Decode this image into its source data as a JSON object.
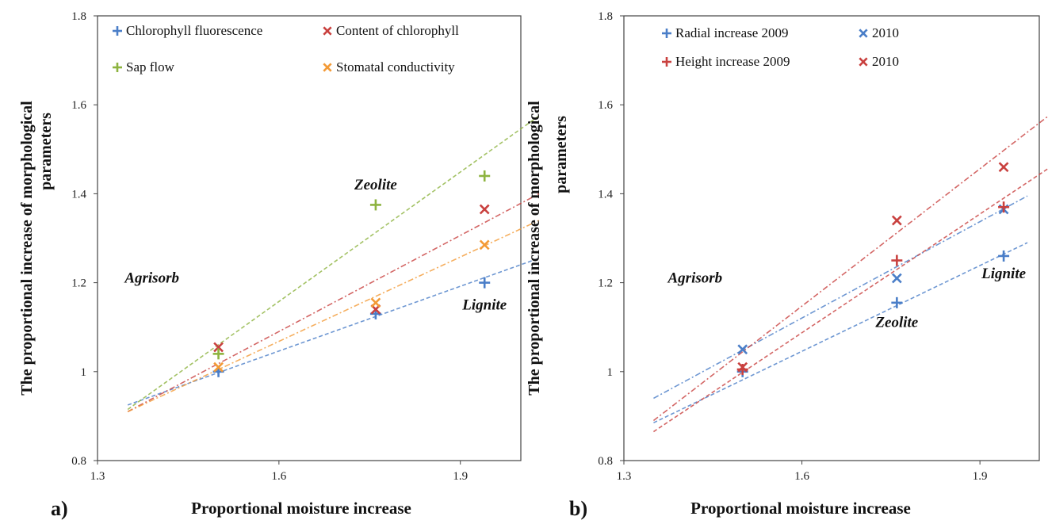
{
  "chart_data": [
    {
      "type": "scatter",
      "panel_label": "a)",
      "xlabel": "Proportional moisture  increase",
      "ylabel": [
        "The proportional increase of  morphological",
        "parameters"
      ],
      "xlim": [
        1.3,
        2.0
      ],
      "ylim": [
        0.8,
        1.8
      ],
      "xticks": [
        "1.3",
        "1.6",
        "1.9"
      ],
      "yticks": [
        "0.8",
        "1",
        "1.2",
        "1.4",
        "1.6",
        "1.8"
      ],
      "legend_position": "top",
      "annotations": [
        {
          "text": "Agrisorb",
          "x": 1.39,
          "y": 1.2
        },
        {
          "text": "Zeolite",
          "x": 1.76,
          "y": 1.41
        },
        {
          "text": "Lignite",
          "x": 1.94,
          "y": 1.14
        }
      ],
      "series": [
        {
          "name": "Chlorophyll fluorescence",
          "marker": "plus",
          "color": "#4a7ec8",
          "x": [
            1.5,
            1.76,
            1.94
          ],
          "y": [
            1.0,
            1.13,
            1.2
          ],
          "trend": {
            "x": [
              1.35,
              2.03
            ],
            "y": [
              0.925,
              1.255
            ]
          }
        },
        {
          "name": "Content of chlorophyll",
          "marker": "cross",
          "color": "#c9413f",
          "x": [
            1.5,
            1.76,
            1.94
          ],
          "y": [
            1.055,
            1.14,
            1.365
          ],
          "trend": {
            "x": [
              1.35,
              2.03
            ],
            "y": [
              0.91,
              1.4
            ]
          }
        },
        {
          "name": "Sap flow",
          "marker": "plus",
          "color": "#8db33f",
          "x": [
            1.5,
            1.76,
            1.94
          ],
          "y": [
            1.04,
            1.375,
            1.44
          ],
          "trend": {
            "x": [
              1.35,
              2.03
            ],
            "y": [
              0.915,
              1.575
            ]
          }
        },
        {
          "name": "Stomatal conductivity",
          "marker": "cross",
          "color": "#f39a36",
          "x": [
            1.5,
            1.76,
            1.94
          ],
          "y": [
            1.01,
            1.155,
            1.285
          ],
          "trend": {
            "x": [
              1.35,
              2.03
            ],
            "y": [
              0.91,
              1.34
            ]
          }
        }
      ]
    },
    {
      "type": "scatter",
      "panel_label": "b)",
      "xlabel": "Proportional moisture  increase",
      "ylabel": [
        "The proportional increase of  morphological",
        "parameters"
      ],
      "xlim": [
        1.3,
        2.0
      ],
      "ylim": [
        0.8,
        1.8
      ],
      "xticks": [
        "1.3",
        "1.6",
        "1.9"
      ],
      "yticks": [
        "0.8",
        "1",
        "1.2",
        "1.4",
        "1.6",
        "1.8"
      ],
      "legend_position": "top",
      "annotations": [
        {
          "text": "Agrisorb",
          "x": 1.42,
          "y": 1.2
        },
        {
          "text": "Zeolite",
          "x": 1.76,
          "y": 1.1
        },
        {
          "text": "Lignite",
          "x": 1.94,
          "y": 1.21
        }
      ],
      "series": [
        {
          "name": "Radial increase 2009",
          "marker": "plus",
          "color": "#4a7ec8",
          "x": [
            1.5,
            1.76,
            1.94
          ],
          "y": [
            1.0,
            1.155,
            1.26
          ],
          "trend": {
            "x": [
              1.35,
              1.98
            ],
            "y": [
              0.885,
              1.29
            ]
          }
        },
        {
          "name": "2010",
          "marker": "cross",
          "color": "#4a7ec8",
          "x": [
            1.5,
            1.76,
            1.94
          ],
          "y": [
            1.05,
            1.21,
            1.365
          ],
          "trend": {
            "x": [
              1.35,
              1.98
            ],
            "y": [
              0.94,
              1.395
            ]
          }
        },
        {
          "name": "Height increase 2009",
          "marker": "plus",
          "color": "#c9413f",
          "x": [
            1.5,
            1.76,
            1.94
          ],
          "y": [
            1.005,
            1.25,
            1.37
          ],
          "trend": {
            "x": [
              1.35,
              2.03
            ],
            "y": [
              0.865,
              1.47
            ]
          }
        },
        {
          "name": "2010",
          "marker": "cross",
          "color": "#c9413f",
          "x": [
            1.5,
            1.76,
            1.94
          ],
          "y": [
            1.01,
            1.34,
            1.46
          ],
          "trend": {
            "x": [
              1.35,
              2.03
            ],
            "y": [
              0.89,
              1.59
            ]
          }
        }
      ]
    }
  ]
}
